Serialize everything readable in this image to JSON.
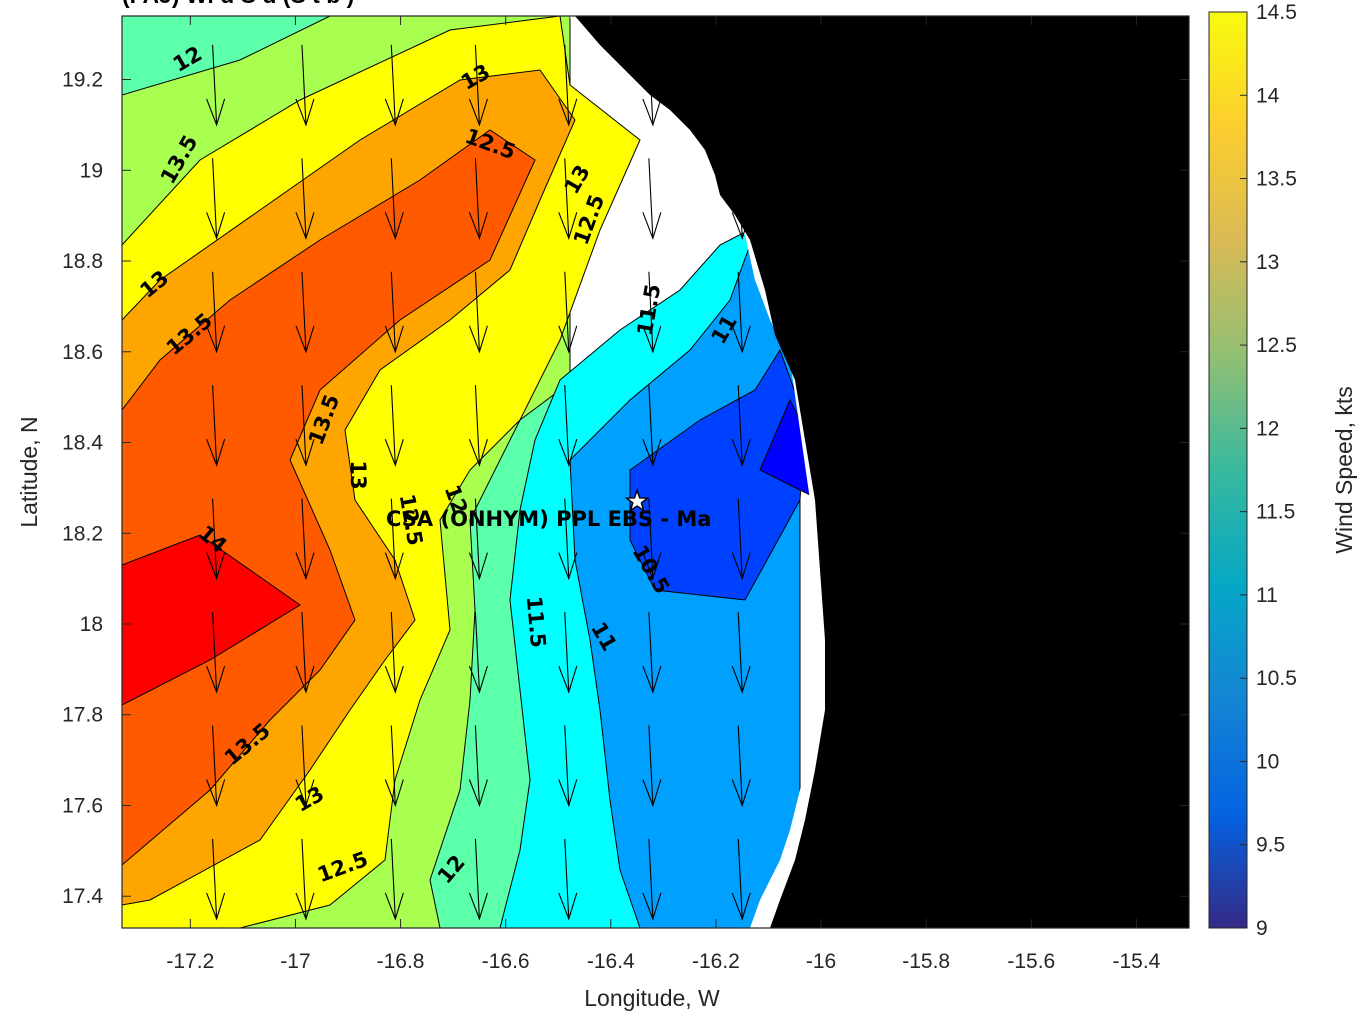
{
  "title_partial": "(FAJ) Wi d S d (S t b )",
  "chart_data": {
    "type": "heatmap",
    "title": "",
    "xlabel": "Longitude, W",
    "ylabel": "Latitude, N",
    "xlim": [
      -17.33,
      -15.3
    ],
    "ylim": [
      17.33,
      19.34
    ],
    "xticks": [
      -17.2,
      -17,
      -16.8,
      -16.6,
      -16.4,
      -16.2,
      -16,
      -15.8,
      -15.6,
      -15.4
    ],
    "xtick_labels": [
      "-17.2",
      "-17",
      "-16.8",
      "-16.6",
      "-16.4",
      "-16.2",
      "-16",
      "-15.8",
      "-15.6",
      "-15.4"
    ],
    "yticks": [
      17.4,
      17.6,
      17.8,
      18,
      18.2,
      18.4,
      18.6,
      18.8,
      19,
      19.2
    ],
    "ytick_labels": [
      "17.4",
      "17.6",
      "17.8",
      "18",
      "18.2",
      "18.4",
      "18.6",
      "18.8",
      "19",
      "19.2"
    ],
    "colorbar": {
      "label": "Wind Speed, kts",
      "limits": [
        9,
        14.5
      ],
      "ticks": [
        9,
        9.5,
        10,
        10.5,
        11,
        11.5,
        12,
        12.5,
        13,
        13.5,
        14,
        14.5
      ],
      "tick_labels": [
        "9",
        "9.5",
        "10",
        "10.5",
        "11",
        "11.5",
        "12",
        "12.5",
        "13",
        "13.5",
        "14",
        "14.5"
      ],
      "colors": [
        "#352a87",
        "#0363e1",
        "#1485d4",
        "#06a7c6",
        "#38b99e",
        "#92bf73",
        "#d9ba56",
        "#fcce2e",
        "#f9fb0e"
      ]
    },
    "band_colors": {
      "10": "#0000ff",
      "10.5": "#0040ff",
      "11": "#0080ff",
      "11.5": "#00c0ff",
      "12": "#00ffff",
      "12.5": "#40ffbf",
      "13": "#80ff80",
      "13.5": "#bfff40",
      "14": "#ffff00",
      "14.5": "#ffbf00",
      "15": "#ff8000",
      "15.5": "#ff4000",
      "16": "#ff0000"
    },
    "palette_used": {
      "c10_5": "#0040ff",
      "c11": "#00a0ff",
      "c11_5": "#00ffff",
      "c12": "#5cffaa",
      "c12_5": "#a8ff50",
      "c13": "#ffff00",
      "c13_5": "#ffa500",
      "c14": "#ff5a00",
      "c14_5": "#ff0000",
      "c_low": "#0000ff"
    },
    "contour_labels": [
      "12",
      "13",
      "13.5",
      "12.5",
      "13",
      "12.5",
      "13",
      "13.5",
      "11.5",
      "11",
      "13.5",
      "13",
      "12",
      "12.5",
      "14",
      "10.5",
      "11.5",
      "11",
      "13.5",
      "13",
      "12.5",
      "12"
    ],
    "site_label": "CSA (ONHYM) PPL EBS  - Ma",
    "site_location": {
      "lon": -16.35,
      "lat": 18.27
    },
    "wind_vector_grid": {
      "lons": [
        -17.15,
        -16.98,
        -16.81,
        -16.65,
        -16.48,
        -16.32,
        -16.15
      ],
      "lats": [
        19.35,
        19.1,
        18.85,
        18.6,
        18.35,
        18.1,
        17.85,
        17.6,
        17.35
      ],
      "direction": "from north"
    }
  }
}
